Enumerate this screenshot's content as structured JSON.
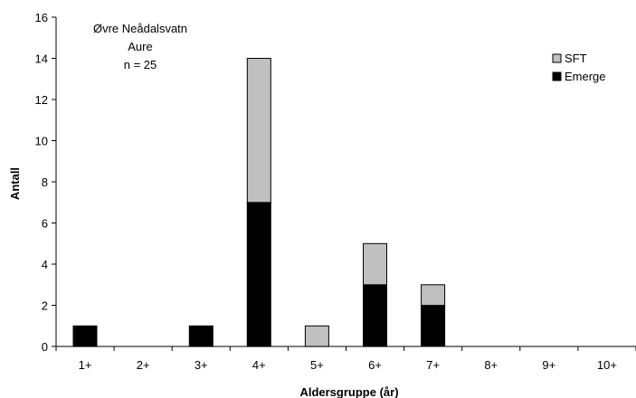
{
  "chart_data": {
    "type": "bar",
    "stacked": true,
    "categories": [
      "1+",
      "2+",
      "3+",
      "4+",
      "5+",
      "6+",
      "7+",
      "8+",
      "9+",
      "10+"
    ],
    "series": [
      {
        "name": "Emerge",
        "color": "#000000",
        "values": [
          1,
          0,
          1,
          7,
          0,
          3,
          2,
          0,
          0,
          0
        ]
      },
      {
        "name": "SFT",
        "color": "#c0c0c0",
        "values": [
          0,
          0,
          0,
          7,
          1,
          2,
          1,
          0,
          0,
          0
        ]
      }
    ],
    "xlabel": "Aldersgruppe (år)",
    "ylabel": "Antall",
    "ylim": [
      0,
      16
    ],
    "yticks": [
      0,
      2,
      4,
      6,
      8,
      10,
      12,
      14,
      16
    ],
    "grid": false,
    "legend_position": "top-right",
    "annotation": [
      "Øvre Neådalsvatn",
      "Aure",
      "n = 25"
    ]
  }
}
